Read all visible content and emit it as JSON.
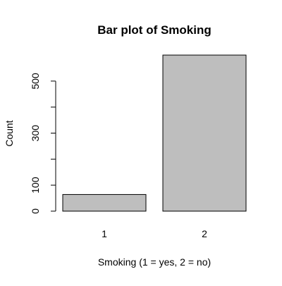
{
  "chart_data": {
    "type": "bar",
    "title": "Bar plot of Smoking",
    "xlabel": "Smoking (1 = yes, 2 = no)",
    "ylabel": "Count",
    "categories": [
      "1",
      "2"
    ],
    "values": [
      64,
      600
    ],
    "ylim": [
      0,
      600
    ],
    "y_ticks": [
      0,
      100,
      200,
      300,
      400,
      500
    ],
    "y_tick_labels": [
      "0",
      "100",
      "",
      "300",
      "",
      "500"
    ],
    "bar_color": "#BEBEBE",
    "bar_edge_color": "#000000",
    "grid": false
  }
}
